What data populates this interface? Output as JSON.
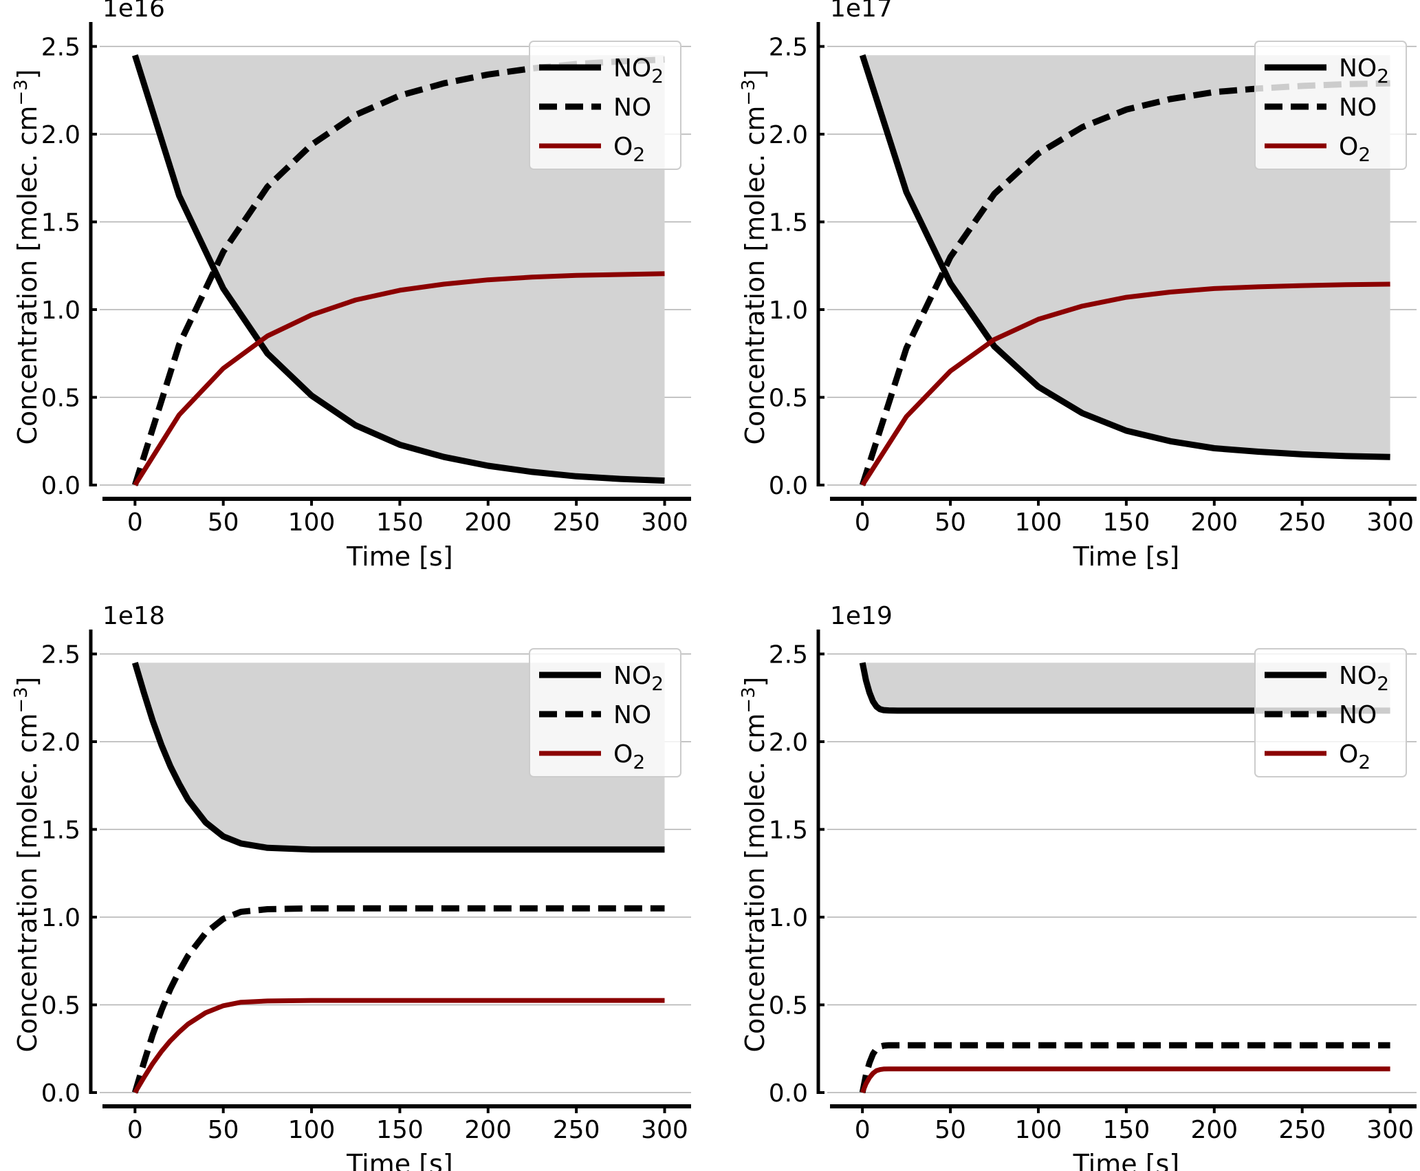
{
  "figure": {
    "xlabel": "Time [s]",
    "ylabel_prefix": "Concentration [molec. cm",
    "ylabel_exp": "−3",
    "ylabel_suffix": "]"
  },
  "chart_data": [
    {
      "type": "line",
      "multiplier_label": "1e16",
      "xlim": [
        -20,
        315
      ],
      "ylim": [
        0,
        2.6
      ],
      "x_ticks": [
        0,
        50,
        100,
        150,
        200,
        250,
        300
      ],
      "y_ticks": [
        "0.0",
        "0.5",
        "1.0",
        "1.5",
        "2.0",
        "2.5"
      ],
      "grid": "horizontal",
      "legend_position": "top-right",
      "shaded_region": {
        "x": [
          0,
          300
        ],
        "from_series": "NO2",
        "to": 2.45
      },
      "series": [
        {
          "name": "NO2",
          "style": "solid",
          "color": "#000000",
          "x": [
            0,
            25,
            50,
            75,
            100,
            125,
            150,
            175,
            200,
            225,
            250,
            275,
            300
          ],
          "y": [
            2.45,
            1.65,
            1.12,
            0.75,
            0.51,
            0.34,
            0.23,
            0.16,
            0.11,
            0.075,
            0.05,
            0.035,
            0.025
          ]
        },
        {
          "name": "NO",
          "style": "dashed",
          "color": "#000000",
          "x": [
            0,
            25,
            50,
            75,
            100,
            125,
            150,
            175,
            200,
            225,
            250,
            275,
            300
          ],
          "y": [
            0,
            0.8,
            1.33,
            1.7,
            1.94,
            2.11,
            2.22,
            2.29,
            2.34,
            2.375,
            2.4,
            2.415,
            2.425
          ]
        },
        {
          "name": "O2",
          "style": "solid",
          "color": "#8b0000",
          "x": [
            0,
            25,
            50,
            75,
            100,
            125,
            150,
            175,
            200,
            225,
            250,
            275,
            300
          ],
          "y": [
            0,
            0.4,
            0.665,
            0.85,
            0.97,
            1.055,
            1.11,
            1.145,
            1.17,
            1.185,
            1.195,
            1.2,
            1.205
          ]
        }
      ]
    },
    {
      "type": "line",
      "multiplier_label": "1e17",
      "xlim": [
        -20,
        315
      ],
      "ylim": [
        0,
        2.6
      ],
      "x_ticks": [
        0,
        50,
        100,
        150,
        200,
        250,
        300
      ],
      "y_ticks": [
        "0.0",
        "0.5",
        "1.0",
        "1.5",
        "2.0",
        "2.5"
      ],
      "grid": "horizontal",
      "legend_position": "top-right",
      "shaded_region": {
        "x": [
          0,
          300
        ],
        "from_series": "NO2",
        "to": 2.45
      },
      "series": [
        {
          "name": "NO2",
          "style": "solid",
          "color": "#000000",
          "x": [
            0,
            25,
            50,
            75,
            100,
            125,
            150,
            175,
            200,
            225,
            250,
            275,
            300
          ],
          "y": [
            2.45,
            1.67,
            1.15,
            0.79,
            0.56,
            0.41,
            0.31,
            0.25,
            0.21,
            0.19,
            0.175,
            0.165,
            0.16
          ]
        },
        {
          "name": "NO",
          "style": "dashed",
          "color": "#000000",
          "x": [
            0,
            25,
            50,
            75,
            100,
            125,
            150,
            175,
            200,
            225,
            250,
            275,
            300
          ],
          "y": [
            0,
            0.78,
            1.3,
            1.66,
            1.89,
            2.04,
            2.14,
            2.2,
            2.24,
            2.26,
            2.275,
            2.285,
            2.29
          ]
        },
        {
          "name": "O2",
          "style": "solid",
          "color": "#8b0000",
          "x": [
            0,
            25,
            50,
            75,
            100,
            125,
            150,
            175,
            200,
            225,
            250,
            275,
            300
          ],
          "y": [
            0,
            0.39,
            0.65,
            0.83,
            0.945,
            1.02,
            1.07,
            1.1,
            1.12,
            1.13,
            1.137,
            1.142,
            1.145
          ]
        }
      ]
    },
    {
      "type": "line",
      "multiplier_label": "1e18",
      "xlim": [
        -20,
        315
      ],
      "ylim": [
        0,
        2.6
      ],
      "x_ticks": [
        0,
        50,
        100,
        150,
        200,
        250,
        300
      ],
      "y_ticks": [
        "0.0",
        "0.5",
        "1.0",
        "1.5",
        "2.0",
        "2.5"
      ],
      "grid": "horizontal",
      "legend_position": "top-right",
      "shaded_region": {
        "x": [
          0,
          300
        ],
        "from_series": "NO2",
        "to": 2.45
      },
      "series": [
        {
          "name": "NO2",
          "style": "solid",
          "color": "#000000",
          "x": [
            0,
            5,
            10,
            15,
            20,
            25,
            30,
            40,
            50,
            60,
            75,
            100,
            150,
            200,
            250,
            300
          ],
          "y": [
            2.45,
            2.28,
            2.12,
            1.98,
            1.86,
            1.76,
            1.67,
            1.54,
            1.46,
            1.42,
            1.395,
            1.385,
            1.385,
            1.385,
            1.385,
            1.385
          ]
        },
        {
          "name": "NO",
          "style": "dashed",
          "color": "#000000",
          "x": [
            0,
            5,
            10,
            15,
            20,
            25,
            30,
            40,
            50,
            60,
            75,
            100,
            150,
            200,
            250,
            300
          ],
          "y": [
            0,
            0.17,
            0.33,
            0.47,
            0.59,
            0.69,
            0.78,
            0.91,
            0.99,
            1.03,
            1.045,
            1.05,
            1.05,
            1.05,
            1.05,
            1.05
          ]
        },
        {
          "name": "O2",
          "style": "solid",
          "color": "#8b0000",
          "x": [
            0,
            5,
            10,
            15,
            20,
            25,
            30,
            40,
            50,
            60,
            75,
            100,
            150,
            200,
            250,
            300
          ],
          "y": [
            0,
            0.085,
            0.165,
            0.235,
            0.295,
            0.345,
            0.39,
            0.455,
            0.495,
            0.515,
            0.522,
            0.525,
            0.525,
            0.525,
            0.525,
            0.525
          ]
        }
      ]
    },
    {
      "type": "line",
      "multiplier_label": "1e19",
      "xlim": [
        -20,
        315
      ],
      "ylim": [
        0,
        2.6
      ],
      "x_ticks": [
        0,
        50,
        100,
        150,
        200,
        250,
        300
      ],
      "y_ticks": [
        "0.0",
        "0.5",
        "1.0",
        "1.5",
        "2.0",
        "2.5"
      ],
      "grid": "horizontal",
      "legend_position": "top-right",
      "shaded_region": {
        "x": [
          0,
          300
        ],
        "from_series": "NO2",
        "to": 2.45
      },
      "series": [
        {
          "name": "NO2",
          "style": "solid",
          "color": "#000000",
          "x": [
            0,
            2,
            4,
            6,
            8,
            10,
            12,
            15,
            20,
            50,
            100,
            150,
            200,
            250,
            300
          ],
          "y": [
            2.45,
            2.35,
            2.28,
            2.23,
            2.2,
            2.185,
            2.18,
            2.178,
            2.177,
            2.177,
            2.177,
            2.177,
            2.177,
            2.177,
            2.177
          ]
        },
        {
          "name": "NO",
          "style": "dashed",
          "color": "#000000",
          "x": [
            0,
            2,
            4,
            6,
            8,
            10,
            12,
            15,
            20,
            50,
            100,
            150,
            200,
            250,
            300
          ],
          "y": [
            0,
            0.1,
            0.17,
            0.22,
            0.25,
            0.262,
            0.267,
            0.27,
            0.27,
            0.27,
            0.27,
            0.27,
            0.27,
            0.27,
            0.27
          ]
        },
        {
          "name": "O2",
          "style": "solid",
          "color": "#8b0000",
          "x": [
            0,
            2,
            4,
            6,
            8,
            10,
            12,
            15,
            20,
            50,
            100,
            150,
            200,
            250,
            300
          ],
          "y": [
            0,
            0.05,
            0.085,
            0.11,
            0.125,
            0.131,
            0.134,
            0.135,
            0.135,
            0.135,
            0.135,
            0.135,
            0.135,
            0.135,
            0.135
          ]
        }
      ]
    }
  ]
}
